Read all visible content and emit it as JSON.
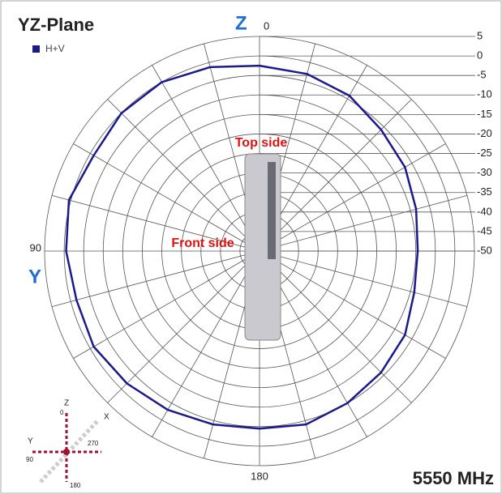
{
  "chart_data": {
    "type": "polar",
    "title": "YZ-Plane",
    "series": [
      {
        "name": "H+V",
        "color": "#1a1a8c",
        "theta": [
          0,
          15,
          30,
          45,
          60,
          75,
          90,
          105,
          120,
          135,
          150,
          165,
          180,
          195,
          210,
          225,
          240,
          255,
          270,
          285,
          300,
          315,
          330,
          345
        ],
        "values": [
          -2.5,
          -1.2,
          0,
          0,
          -1,
          0.5,
          -0.5,
          -1.5,
          -1,
          -2,
          -3,
          -4,
          -4.5,
          -4,
          -5,
          -6,
          -7,
          -9,
          -9.5,
          -8.5,
          -7,
          -6,
          -4,
          -3
        ]
      }
    ],
    "rlim": [
      -50,
      5
    ],
    "rticks": [
      5,
      0,
      -5,
      -10,
      -15,
      -20,
      -25,
      -30,
      -35,
      -40,
      -45,
      -50
    ],
    "thetaticks": [
      0,
      90,
      180
    ],
    "axis_letters": [
      "Z",
      "Y"
    ],
    "annotations": [
      "Top side",
      "Front side"
    ],
    "frequency": "5550 MHz",
    "inset_labels": [
      "Z",
      "0",
      "X",
      "Y",
      "90",
      "270",
      "180"
    ]
  }
}
